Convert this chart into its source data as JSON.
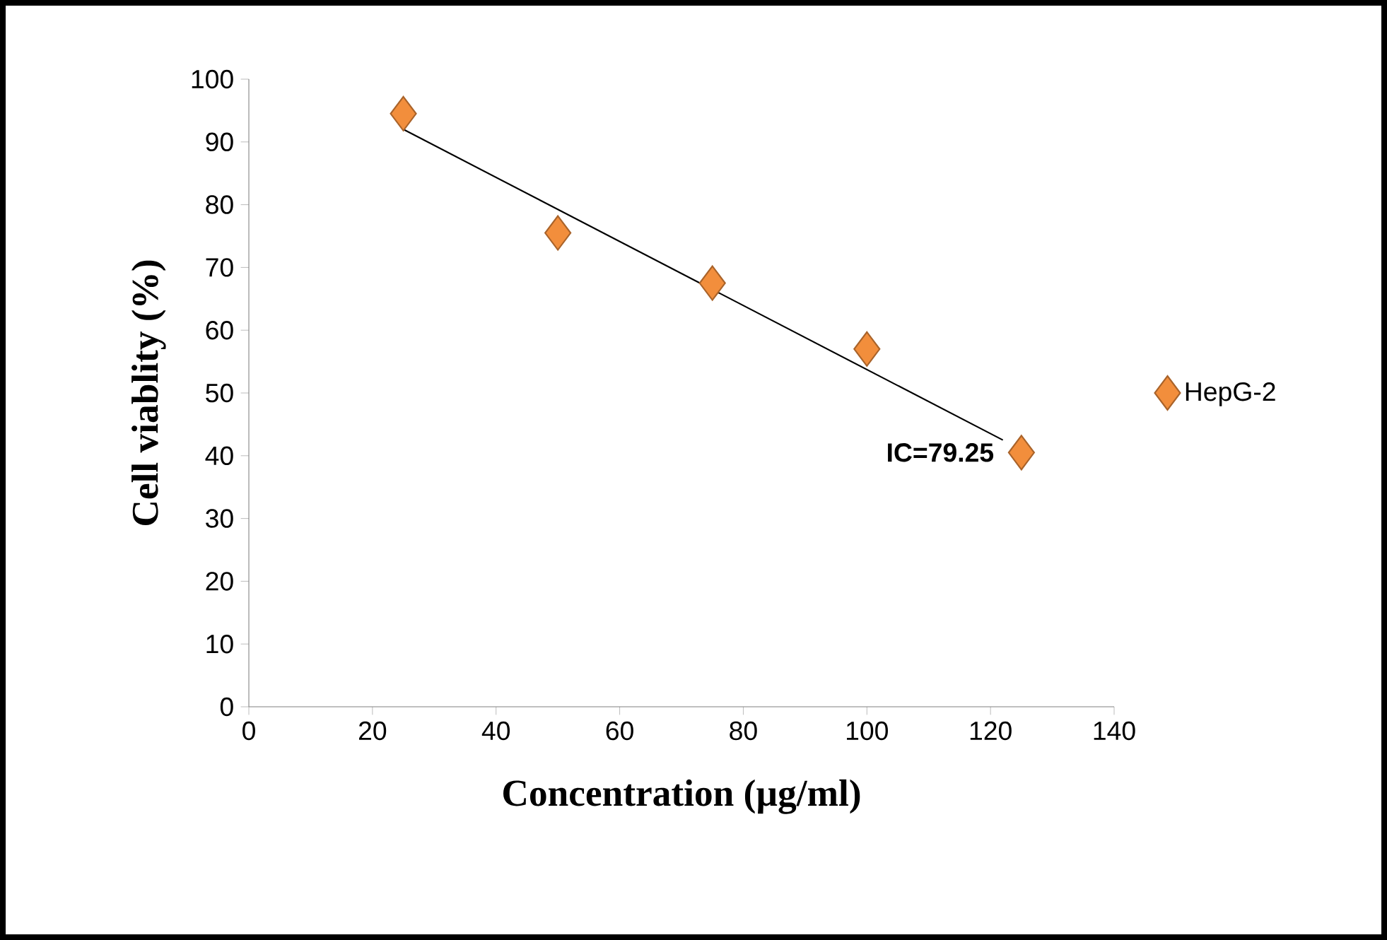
{
  "chart_data": {
    "type": "scatter",
    "xlabel": "Concentration (µg/ml)",
    "ylabel": "Cell viablity (%)",
    "x": [
      25,
      50,
      75,
      100,
      125
    ],
    "series": [
      {
        "name": "HepG-2",
        "color": "#f28e3c",
        "values": [
          94.5,
          75.5,
          67.5,
          57,
          40.5
        ],
        "marker": "diamond"
      },
      {
        "type": "line",
        "color": "#000000",
        "x": [
          25,
          122
        ],
        "values": [
          92,
          42.5
        ]
      }
    ],
    "annotations": [
      {
        "text": "IC=79.25",
        "x": 125,
        "y": 40.5
      }
    ],
    "xlim": [
      0,
      140
    ],
    "xticks": [
      0,
      20,
      40,
      60,
      80,
      100,
      120,
      140
    ],
    "ylim": [
      0,
      100
    ],
    "yticks": [
      0,
      10,
      20,
      30,
      40,
      50,
      60,
      70,
      80,
      90,
      100
    ],
    "legend": "right"
  }
}
